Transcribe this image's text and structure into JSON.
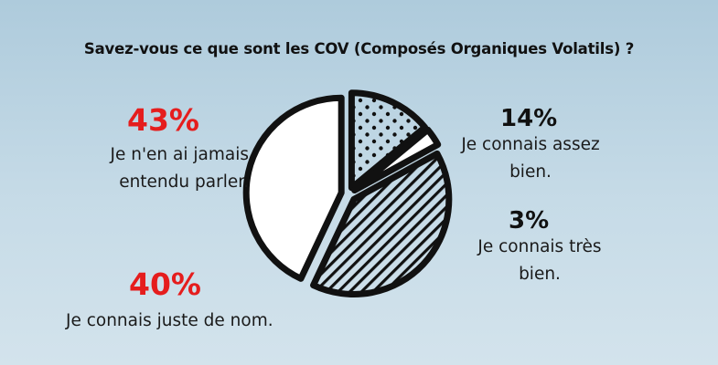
{
  "chart_data": {
    "type": "pie",
    "title": "Savez-vous ce que sont les COV  (Composés Organiques Volatils) ?",
    "slices": [
      {
        "value_label": "14%",
        "value": 14,
        "label_line1": "Je connais assez",
        "label_line2": "bien.",
        "fill": "dots"
      },
      {
        "value_label": "3%",
        "value": 3,
        "label_line1": "Je connais très",
        "label_line2": "bien.",
        "fill": "none"
      },
      {
        "value_label": "40%",
        "value": 40,
        "label_line1": "Je connais juste de nom.",
        "label_line2": "",
        "fill": "stripes"
      },
      {
        "value_label": "43%",
        "value": 43,
        "label_line1": "Je n'en ai jamais",
        "label_line2": "entendu parler.",
        "fill": "none"
      }
    ],
    "colors": {
      "highlight": "#e51d1d",
      "ink": "#111111"
    }
  }
}
